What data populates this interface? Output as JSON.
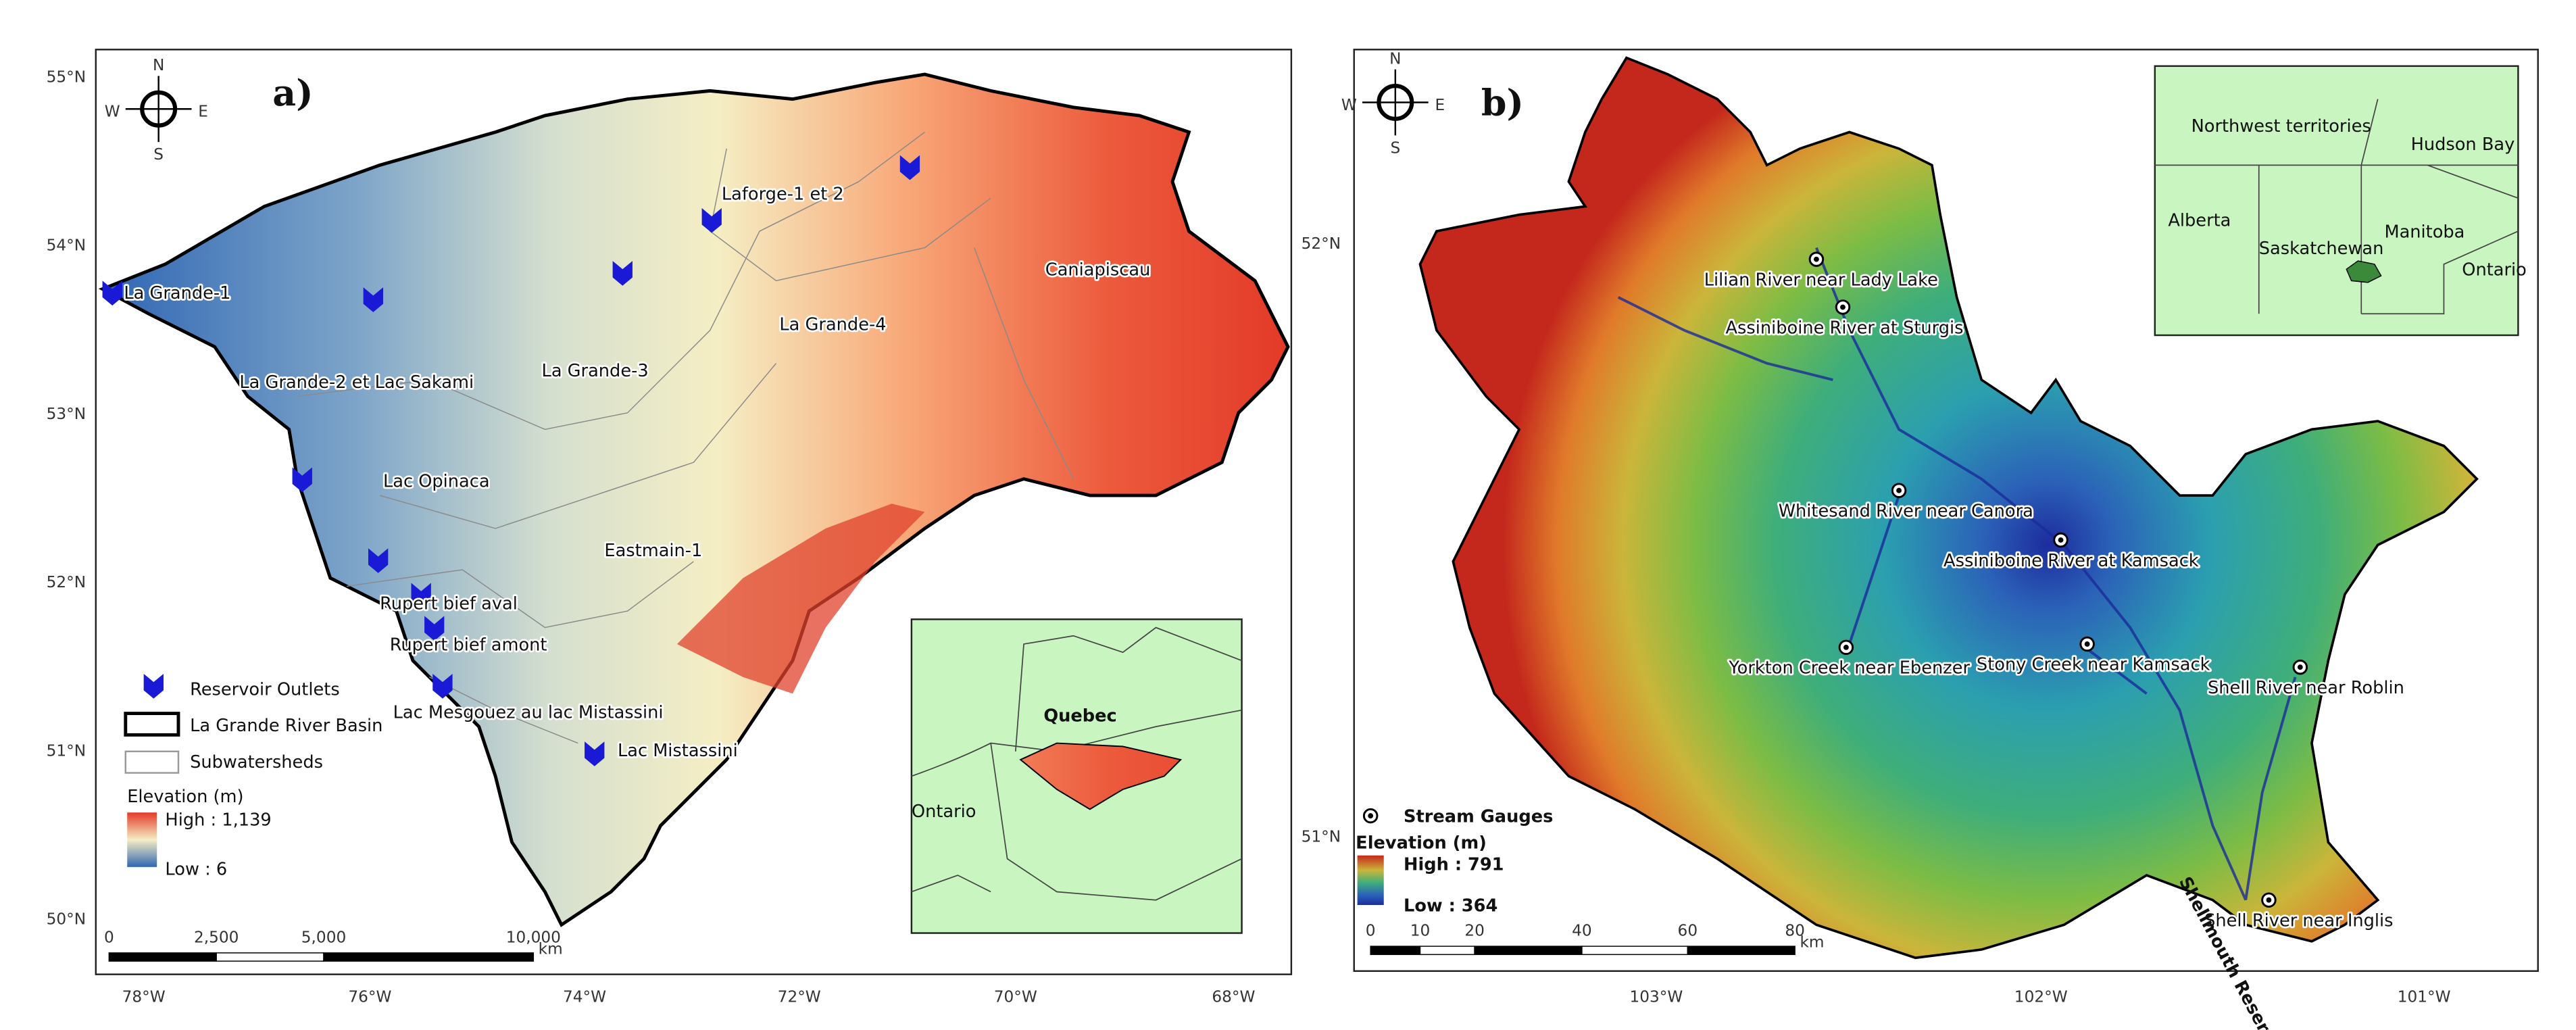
{
  "panel_a": {
    "label": "a)",
    "compass": {
      "n": "N",
      "s": "S",
      "e": "E",
      "w": "W"
    },
    "lat_labels": [
      "55°N",
      "54°N",
      "53°N",
      "52°N",
      "51°N",
      "50°N"
    ],
    "lon_labels": [
      "78°W",
      "76°W",
      "74°W",
      "72°W",
      "70°W",
      "68°W"
    ],
    "places": [
      "La Grande-1",
      "La Grande-2 et Lac Sakami",
      "La Grande-3",
      "Laforge-1 et 2",
      "La Grande-4",
      "Caniapiscau",
      "Lac Opinaca",
      "Eastmain-1",
      "Rupert bief aval",
      "Rupert bief amont",
      "Lac Mesgouez au lac Mistassini",
      "Lac Mistassini"
    ],
    "legend": {
      "outlets": "Reservoir Outlets",
      "basin": "La Grande River Basin",
      "subwatersheds": "Subwatersheds",
      "elevation": "Elevation (m)",
      "high": "High : 1,139",
      "low": "Low : 6"
    },
    "scale": {
      "ticks": [
        "0",
        "2,500",
        "5,000",
        "10,000"
      ],
      "unit": "km"
    },
    "inset": {
      "quebec": "Quebec",
      "ontario": "Ontario"
    }
  },
  "panel_b": {
    "label": "b)",
    "compass": {
      "n": "N",
      "s": "S",
      "e": "E",
      "w": "W"
    },
    "lat_labels": [
      "52°N",
      "51°N"
    ],
    "lon_labels": [
      "103°W",
      "102°W",
      "101°W"
    ],
    "gauges": [
      "Lilian River near Lady Lake",
      "Assiniboine River at Sturgis",
      "Whitesand River near Canora",
      "Assiniboine River at Kamsack",
      "Yorkton Creek near Ebenzer",
      "Stony Creek near Kamsack",
      "Shell River near Roblin",
      "Shell River near Inglis"
    ],
    "reservoir": "Shellmouth Reservoir",
    "legend": {
      "gauges": "Stream Gauges",
      "elevation": "Elevation (m)",
      "high": "High : 791",
      "low": "Low : 364"
    },
    "scale": {
      "ticks": [
        "0",
        "10",
        "20",
        "40",
        "60",
        "80"
      ],
      "unit": "km"
    },
    "inset": {
      "labels": [
        "Northwest territories",
        "Hudson Bay",
        "Alberta",
        "Saskatchewan",
        "Manitoba",
        "Ontario"
      ]
    }
  }
}
